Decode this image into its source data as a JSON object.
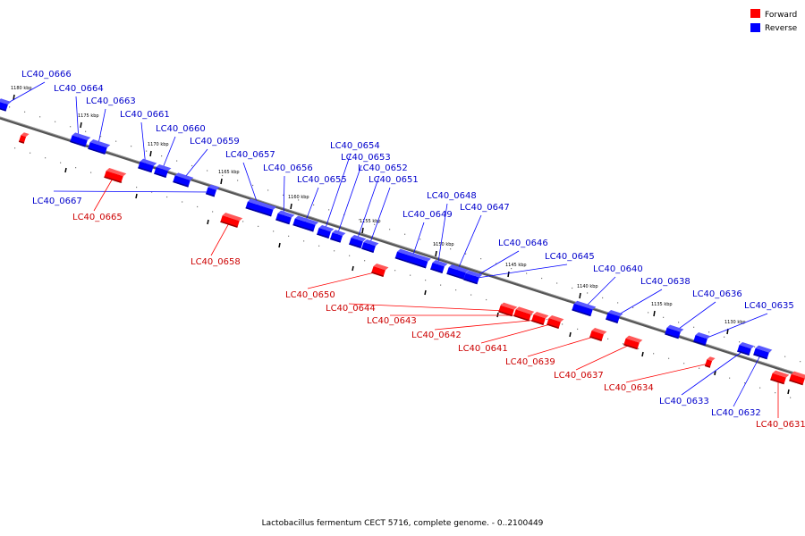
{
  "caption": "Lactobacillus fermentum CECT 5716, complete genome. - 0..2100449",
  "legend": [
    {
      "label": "Forward",
      "color": "#ff0000"
    },
    {
      "label": "Reverse",
      "color": "#0000ff"
    }
  ],
  "colors": {
    "forward": "#ff0000",
    "forward_label": "#cc0000",
    "reverse": "#0000ff",
    "reverse_label": "#0000cc",
    "backbone": "#555555"
  },
  "ticks": [
    "1180 kbp",
    "1175 kbp",
    "1170 kbp",
    "1165 kbp",
    "1160 kbp",
    "1155 kbp",
    "1150 kbp",
    "1145 kbp",
    "1140 kbp",
    "1135 kbp",
    "1130 kbp"
  ],
  "genes": [
    {
      "name": "LC40_0666",
      "strand": "reverse"
    },
    {
      "name": "LC40_0664",
      "strand": "reverse"
    },
    {
      "name": "LC40_0663",
      "strand": "reverse"
    },
    {
      "name": "LC40_0661",
      "strand": "reverse"
    },
    {
      "name": "LC40_0660",
      "strand": "reverse"
    },
    {
      "name": "LC40_0659",
      "strand": "reverse"
    },
    {
      "name": "LC40_0657",
      "strand": "reverse"
    },
    {
      "name": "LC40_0656",
      "strand": "reverse"
    },
    {
      "name": "LC40_0655",
      "strand": "reverse"
    },
    {
      "name": "LC40_0654",
      "strand": "reverse"
    },
    {
      "name": "LC40_0653",
      "strand": "reverse"
    },
    {
      "name": "LC40_0652",
      "strand": "reverse"
    },
    {
      "name": "LC40_0651",
      "strand": "reverse"
    },
    {
      "name": "LC40_0649",
      "strand": "reverse"
    },
    {
      "name": "LC40_0648",
      "strand": "reverse"
    },
    {
      "name": "LC40_0647",
      "strand": "reverse"
    },
    {
      "name": "LC40_0646",
      "strand": "reverse"
    },
    {
      "name": "LC40_0645",
      "strand": "reverse"
    },
    {
      "name": "LC40_0640",
      "strand": "reverse"
    },
    {
      "name": "LC40_0638",
      "strand": "reverse"
    },
    {
      "name": "LC40_0636",
      "strand": "reverse"
    },
    {
      "name": "LC40_0635",
      "strand": "reverse"
    },
    {
      "name": "LC40_0667",
      "strand": "reverse"
    },
    {
      "name": "LC40_0633",
      "strand": "reverse"
    },
    {
      "name": "LC40_0632",
      "strand": "reverse"
    },
    {
      "name": "LC40_0665",
      "strand": "forward"
    },
    {
      "name": "LC40_0658",
      "strand": "forward"
    },
    {
      "name": "LC40_0650",
      "strand": "forward"
    },
    {
      "name": "LC40_0644",
      "strand": "forward"
    },
    {
      "name": "LC40_0643",
      "strand": "forward"
    },
    {
      "name": "LC40_0642",
      "strand": "forward"
    },
    {
      "name": "LC40_0641",
      "strand": "forward"
    },
    {
      "name": "LC40_0639",
      "strand": "forward"
    },
    {
      "name": "LC40_0637",
      "strand": "forward"
    },
    {
      "name": "LC40_0634",
      "strand": "forward"
    },
    {
      "name": "LC40_0631",
      "strand": "forward"
    }
  ]
}
